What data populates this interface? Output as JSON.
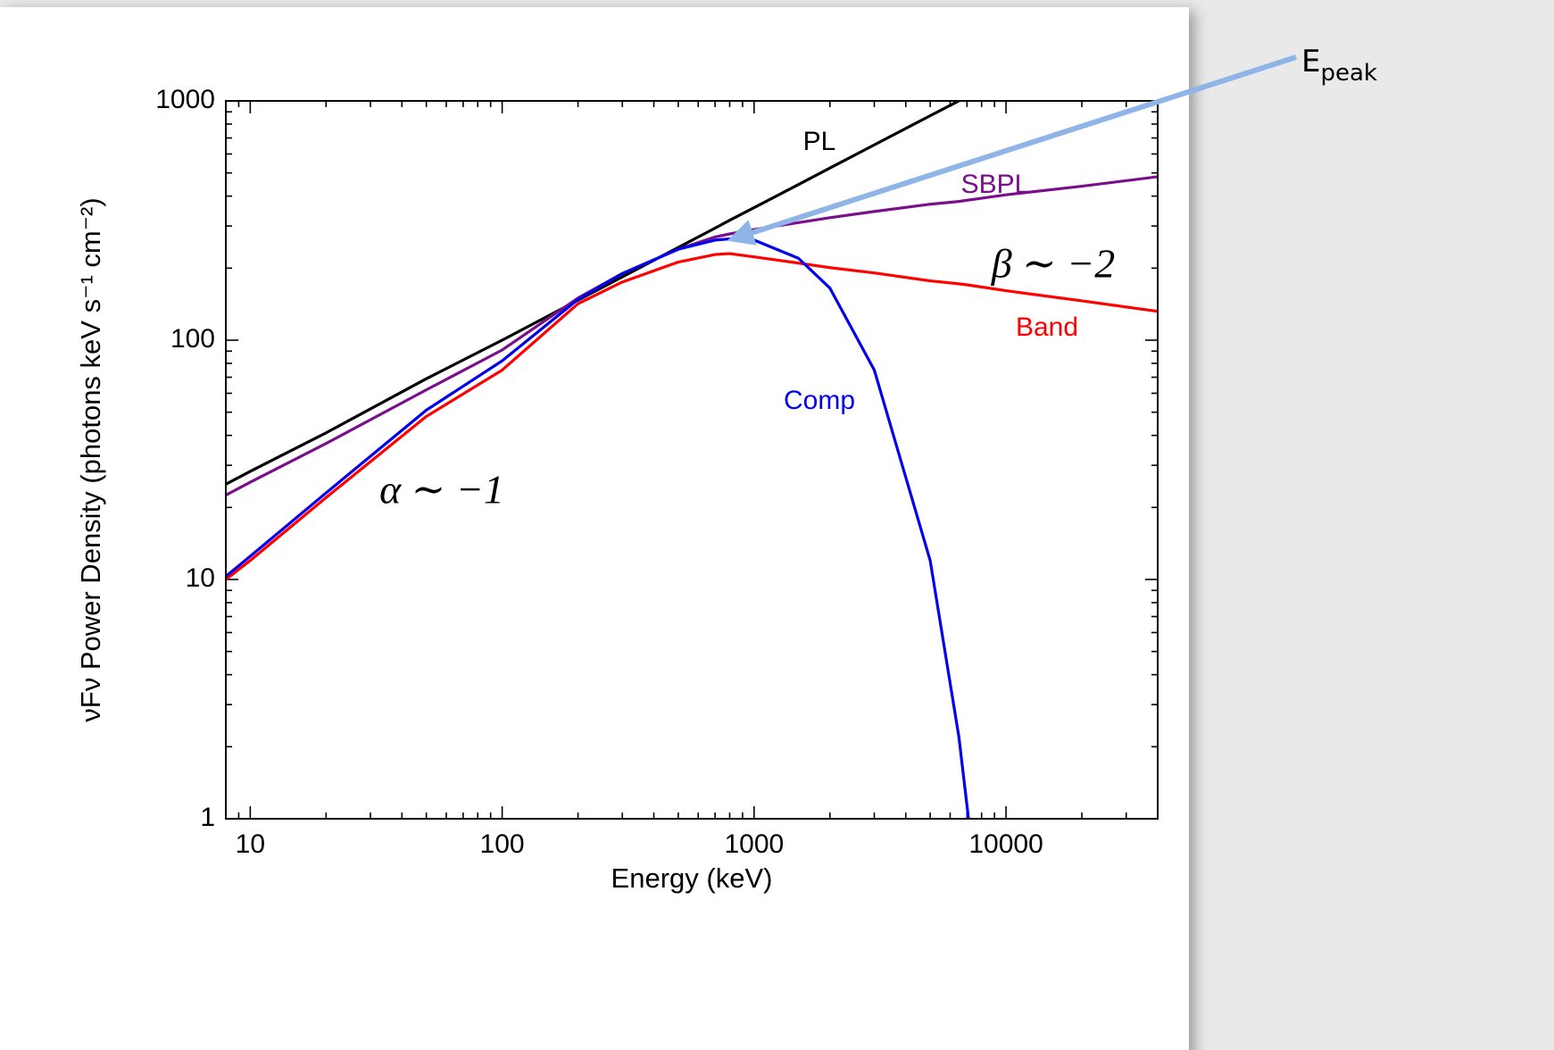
{
  "chart_data": {
    "type": "line",
    "xlabel": "Energy (keV)",
    "ylabel": "νFν Power Density (photons keV s⁻¹ cm⁻²)",
    "xscale": "log",
    "yscale": "log",
    "xlim": [
      8,
      40000
    ],
    "ylim": [
      1,
      1000
    ],
    "xticks": [
      10,
      100,
      1000,
      10000
    ],
    "yticks": [
      1,
      10,
      100,
      1000
    ],
    "x": [
      8,
      10,
      20,
      50,
      100,
      200,
      300,
      500,
      700,
      800,
      1000,
      1500,
      2000,
      3000,
      5000,
      6500,
      7100,
      10000,
      20000,
      40000
    ],
    "series": [
      {
        "name": "PL",
        "color": "#000000",
        "values": [
          25,
          28.3,
          41,
          69,
          100,
          147,
          184,
          244,
          294,
          317,
          358,
          447,
          524,
          655,
          867,
          1000,
          null,
          null,
          null,
          null
        ]
      },
      {
        "name": "SBPL",
        "color": "#7a0f8c",
        "values": [
          22.5,
          25.5,
          37,
          62,
          91,
          150,
          190,
          240,
          270,
          278,
          290,
          310,
          325,
          345,
          370,
          380,
          385,
          405,
          440,
          482
        ]
      },
      {
        "name": "Band",
        "color": "#ff0000",
        "values": [
          10,
          12,
          22,
          48,
          75,
          142,
          175,
          212,
          228,
          230,
          223,
          210,
          201,
          191,
          177,
          172,
          170,
          161,
          146,
          132
        ]
      },
      {
        "name": "Comp",
        "color": "#0000ee",
        "values": [
          10.3,
          12.5,
          23,
          51,
          82,
          148,
          190,
          240,
          262,
          265,
          262,
          220,
          165,
          75,
          12,
          2.2,
          1,
          null,
          null,
          null
        ]
      }
    ],
    "annotations": [
      {
        "text": "α ∼ −1"
      },
      {
        "text": "β ∼ −2"
      },
      {
        "text": "E",
        "subscript": "peak"
      }
    ]
  }
}
